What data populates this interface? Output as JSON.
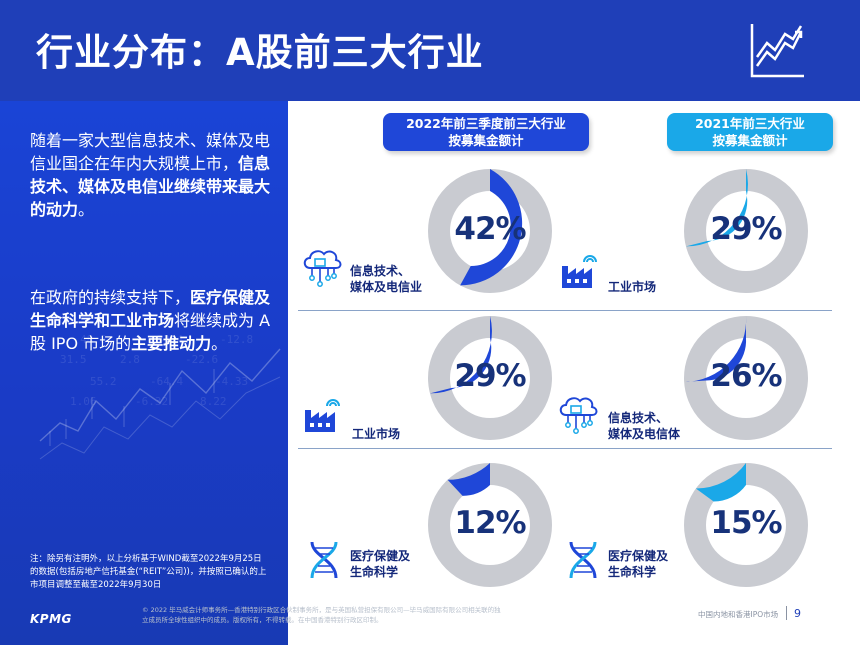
{
  "title": "行业分布：A股前三大行业",
  "left": {
    "para1": [
      {
        "t": "随着一家大型信息技术、媒体及电信业国企在年内大规模上市，",
        "b": false
      },
      {
        "t": "信息技术、媒体及电信业继续带来最大的动力",
        "b": true
      },
      {
        "t": "。",
        "b": false
      }
    ],
    "para2": [
      {
        "t": "在政府的持续支持下，",
        "b": false
      },
      {
        "t": "医疗保健及生命科学和工业市场",
        "b": true
      },
      {
        "t": "将继续成为 A 股 IPO 市场的",
        "b": false
      },
      {
        "t": "主要推动力",
        "b": true
      },
      {
        "t": "。",
        "b": false
      }
    ],
    "note": "注：除另有注明外，以上分析基于WIND截至2022年9月25日的数据(包括房地产信托基金(“REIT”公司))，并按照已确认的上市项目调整至截至2022年9月30日",
    "logo": "KPMG"
  },
  "columns": {
    "c2022": "2022年前三季度前三大行业\n按募集金额计",
    "c2021": "2021年前三大行业\n按募集金额计"
  },
  "rows": [
    {
      "left": {
        "pct": "42%",
        "value": 42,
        "label": "信息技术、\n媒体及电信业",
        "icon": "cloud-network-icon"
      },
      "right": {
        "pct": "29%",
        "value": 29,
        "label": "工业市场",
        "icon": "factory-icon"
      }
    },
    {
      "left": {
        "pct": "29%",
        "value": 29,
        "label": "工业市场",
        "icon": "factory-icon"
      },
      "right": {
        "pct": "26%",
        "value": 26,
        "label": "信息技术、\n媒体及电信体",
        "icon": "cloud-network-icon"
      }
    },
    {
      "left": {
        "pct": "12%",
        "value": 12,
        "label": "医疗保健及\n生命科学",
        "icon": "dna-icon"
      },
      "right": {
        "pct": "15%",
        "value": 15,
        "label": "医疗保健及\n生命科学",
        "icon": "dna-icon"
      }
    }
  ],
  "colors": {
    "blue": "#1f47d8",
    "cyan": "#1aa8e8",
    "grey": "#c9cbd1"
  },
  "footer": {
    "copyright": "© 2022 毕马威会计师事务所—香港特别行政区合伙制事务所，是与英国私营担保有限公司—毕马威国际有限公司相关联的独立成员所全球性组织中的成员。版权所有，不得转载。在中国香港特别行政区印制。",
    "section": "中国内地和香港IPO市场",
    "page": "9"
  }
}
